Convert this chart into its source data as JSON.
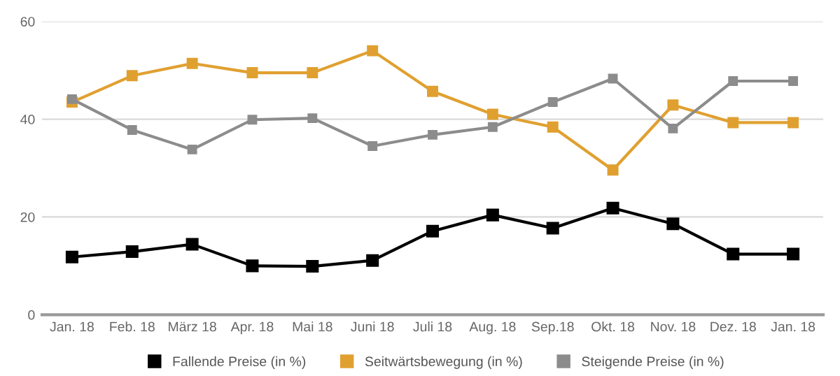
{
  "chart_data": {
    "type": "line",
    "categories": [
      "Jan. 18",
      "Feb. 18",
      "März 18",
      "Apr. 18",
      "Mai 18",
      "Juni 18",
      "Juli 18",
      "Aug. 18",
      "Sep.18",
      "Okt. 18",
      "Nov. 18",
      "Dez. 18",
      "Jan. 18"
    ],
    "series": [
      {
        "name": "Fallende Preise (in %)",
        "color": "#000000",
        "values": [
          11.8,
          12.9,
          14.4,
          10.0,
          9.9,
          11.1,
          17.1,
          20.4,
          17.7,
          21.8,
          18.6,
          12.4,
          12.4
        ]
      },
      {
        "name": "Seitwärtsbewegung (in %)",
        "color": "#e0a030",
        "values": [
          43.5,
          48.9,
          51.4,
          49.5,
          49.5,
          54.0,
          45.7,
          41.0,
          38.4,
          29.6,
          42.9,
          39.3,
          39.3
        ]
      },
      {
        "name": "Steigende Preise (in %)",
        "color": "#8c8c8c",
        "values": [
          44.1,
          37.8,
          33.8,
          39.9,
          40.2,
          34.5,
          36.8,
          38.4,
          43.5,
          48.3,
          38.1,
          47.8,
          47.8
        ]
      }
    ],
    "ylim": [
      0,
      60
    ],
    "yticks": [
      0,
      20,
      40,
      60
    ],
    "grid": "y",
    "legend": "bottom",
    "marker": "square",
    "line_style": "solid"
  }
}
